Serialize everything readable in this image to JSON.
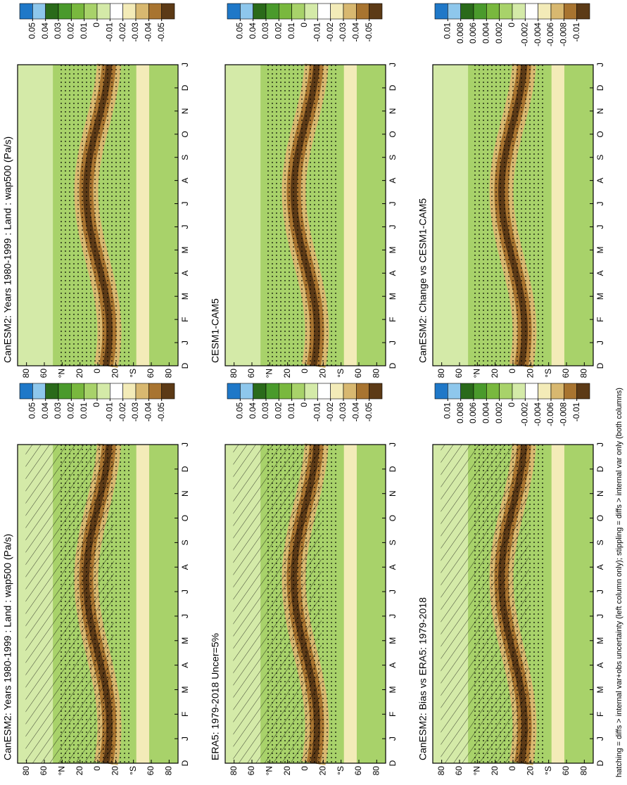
{
  "chart_data": [
    {
      "type": "contour",
      "title": "CanESM2: Years 1980-1999 : Land : wap500 (Pa/s)",
      "hatching": true,
      "categories": [
        "D",
        "J",
        "F",
        "M",
        "A",
        "M",
        "J",
        "J",
        "A",
        "S",
        "O",
        "N",
        "D",
        "J"
      ],
      "ylim": [
        -90,
        90
      ],
      "yticks": [
        80,
        60,
        {
          "value": 40,
          "label": "°N"
        },
        20,
        0,
        {
          "value": -20,
          "label": "20"
        },
        {
          "value": -40,
          "label": "°S"
        },
        {
          "value": -60,
          "label": "60"
        },
        {
          "value": -80,
          "label": "80"
        }
      ],
      "colorbar_ticks": [
        0.05,
        0.04,
        0.03,
        0.02,
        0.01,
        0,
        -0.01,
        -0.02,
        -0.03,
        -0.04,
        -0.05
      ],
      "colors": [
        "#1f78c8",
        "#8ec7ec",
        "#2a6a1a",
        "#4a9a2c",
        "#79b83e",
        "#a8d26a",
        "#d4eaa8",
        "#ffffff",
        "#f3ebb8",
        "#d8b870",
        "#a87430",
        "#5c3a16"
      ]
    },
    {
      "type": "contour",
      "title": "CanESM2: Years 1980-1999 : Land : wap500 (Pa/s)",
      "hatching": false,
      "categories": [
        "D",
        "J",
        "F",
        "M",
        "A",
        "M",
        "J",
        "J",
        "A",
        "S",
        "O",
        "N",
        "D",
        "J"
      ],
      "ylim": [
        -90,
        90
      ],
      "yticks": [
        80,
        60,
        {
          "value": 40,
          "label": "°N"
        },
        20,
        0,
        {
          "value": -20,
          "label": "20"
        },
        {
          "value": -40,
          "label": "°S"
        },
        {
          "value": -60,
          "label": "60"
        },
        {
          "value": -80,
          "label": "80"
        }
      ],
      "colorbar_ticks": [
        0.05,
        0.04,
        0.03,
        0.02,
        0.01,
        0,
        -0.01,
        -0.02,
        -0.03,
        -0.04,
        -0.05
      ],
      "colors": [
        "#1f78c8",
        "#8ec7ec",
        "#2a6a1a",
        "#4a9a2c",
        "#79b83e",
        "#a8d26a",
        "#d4eaa8",
        "#ffffff",
        "#f3ebb8",
        "#d8b870",
        "#a87430",
        "#5c3a16"
      ]
    },
    {
      "type": "contour",
      "title": "ERA5: 1979-2018 Uncer=5%",
      "hatching": true,
      "categories": [
        "D",
        "J",
        "F",
        "M",
        "A",
        "M",
        "J",
        "J",
        "A",
        "S",
        "O",
        "N",
        "D",
        "J"
      ],
      "ylim": [
        -90,
        90
      ],
      "yticks": [
        80,
        60,
        {
          "value": 40,
          "label": "°N"
        },
        20,
        0,
        {
          "value": -20,
          "label": "20"
        },
        {
          "value": -40,
          "label": "°S"
        },
        {
          "value": -60,
          "label": "60"
        },
        {
          "value": -80,
          "label": "80"
        }
      ],
      "colorbar_ticks": [
        0.05,
        0.04,
        0.03,
        0.02,
        0.01,
        0,
        -0.01,
        -0.02,
        -0.03,
        -0.04,
        -0.05
      ],
      "colors": [
        "#1f78c8",
        "#8ec7ec",
        "#2a6a1a",
        "#4a9a2c",
        "#79b83e",
        "#a8d26a",
        "#d4eaa8",
        "#ffffff",
        "#f3ebb8",
        "#d8b870",
        "#a87430",
        "#5c3a16"
      ]
    },
    {
      "type": "contour",
      "title": "CESM1-CAM5",
      "hatching": false,
      "categories": [
        "D",
        "J",
        "F",
        "M",
        "A",
        "M",
        "J",
        "J",
        "A",
        "S",
        "O",
        "N",
        "D",
        "J"
      ],
      "ylim": [
        -90,
        90
      ],
      "yticks": [
        80,
        60,
        {
          "value": 40,
          "label": "°N"
        },
        20,
        0,
        {
          "value": -20,
          "label": "20"
        },
        {
          "value": -40,
          "label": "°S"
        },
        {
          "value": -60,
          "label": "60"
        },
        {
          "value": -80,
          "label": "80"
        }
      ],
      "colorbar_ticks": [
        0.05,
        0.04,
        0.03,
        0.02,
        0.01,
        0,
        -0.01,
        -0.02,
        -0.03,
        -0.04,
        -0.05
      ],
      "colors": [
        "#1f78c8",
        "#8ec7ec",
        "#2a6a1a",
        "#4a9a2c",
        "#79b83e",
        "#a8d26a",
        "#d4eaa8",
        "#ffffff",
        "#f3ebb8",
        "#d8b870",
        "#a87430",
        "#5c3a16"
      ]
    },
    {
      "type": "contour",
      "title": "CanESM2: Bias vs ERA5: 1979-2018",
      "hatching": true,
      "categories": [
        "D",
        "J",
        "F",
        "M",
        "A",
        "M",
        "J",
        "J",
        "A",
        "S",
        "O",
        "N",
        "D",
        "J"
      ],
      "ylim": [
        -90,
        90
      ],
      "yticks": [
        80,
        60,
        {
          "value": 40,
          "label": "°N"
        },
        20,
        0,
        {
          "value": -20,
          "label": "20"
        },
        {
          "value": -40,
          "label": "°S"
        },
        {
          "value": -60,
          "label": "60"
        },
        {
          "value": -80,
          "label": "80"
        }
      ],
      "colorbar_ticks": [
        0.01,
        0.008,
        0.006,
        0.004,
        0.002,
        0,
        -0.002,
        -0.004,
        -0.006,
        -0.008,
        -0.01
      ],
      "colors": [
        "#1f78c8",
        "#8ec7ec",
        "#2a6a1a",
        "#4a9a2c",
        "#79b83e",
        "#a8d26a",
        "#d4eaa8",
        "#ffffff",
        "#f3ebb8",
        "#d8b870",
        "#a87430",
        "#5c3a16"
      ]
    },
    {
      "type": "contour",
      "title": "CanESM2: Change vs CESM1-CAM5",
      "hatching": false,
      "categories": [
        "D",
        "J",
        "F",
        "M",
        "A",
        "M",
        "J",
        "J",
        "A",
        "S",
        "O",
        "N",
        "D",
        "J"
      ],
      "ylim": [
        -90,
        90
      ],
      "yticks": [
        80,
        60,
        {
          "value": 40,
          "label": "°N"
        },
        20,
        0,
        {
          "value": -20,
          "label": "20"
        },
        {
          "value": -40,
          "label": "°S"
        },
        {
          "value": -60,
          "label": "60"
        },
        {
          "value": -80,
          "label": "80"
        }
      ],
      "colorbar_ticks": [
        0.01,
        0.008,
        0.006,
        0.004,
        0.002,
        0,
        -0.002,
        -0.004,
        -0.006,
        -0.008,
        -0.01
      ],
      "colors": [
        "#1f78c8",
        "#8ec7ec",
        "#2a6a1a",
        "#4a9a2c",
        "#79b83e",
        "#a8d26a",
        "#d4eaa8",
        "#ffffff",
        "#f3ebb8",
        "#d8b870",
        "#a87430",
        "#5c3a16"
      ]
    }
  ],
  "footnote": "hatching = diffs > internal var+obs uncertainty (left column only); stippling = diffs > internal var only (both columns)"
}
